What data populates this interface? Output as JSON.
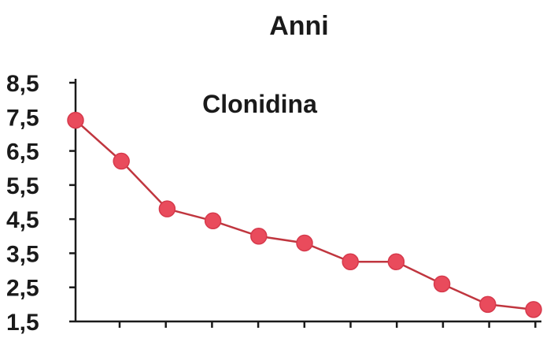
{
  "chart_data": {
    "type": "line",
    "title": "Anni",
    "subtitle": "Clonidina",
    "xlabel": "",
    "ylabel": "",
    "ylim": [
      1.5,
      8.5
    ],
    "yticks": [
      "8,5",
      "7,5",
      "6,5",
      "5,5",
      "4,5",
      "3,5",
      "2,5",
      "1,5"
    ],
    "x": [
      1,
      2,
      3,
      4,
      5,
      6,
      7,
      8,
      9,
      10,
      11
    ],
    "series": [
      {
        "values": [
          7.4,
          6.2,
          4.8,
          4.45,
          4.0,
          3.8,
          3.25,
          3.25,
          2.6,
          2.0,
          1.85
        ],
        "color": "#e94b5c",
        "line_color": "#c0363f"
      }
    ],
    "grid": false,
    "legend": "none"
  }
}
